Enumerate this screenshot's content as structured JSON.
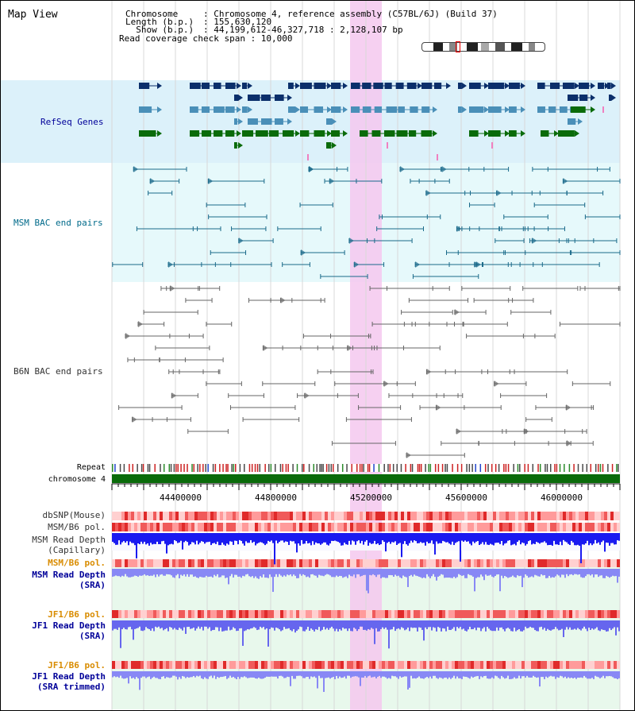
{
  "view_title": "Map View",
  "header": {
    "chromosome_key": "Chromosome    ",
    "chromosome_val": ": Chromosome 4, reference assembly (C57BL/6J) (Build 37)",
    "length_key": "Length (b.p.) ",
    "length_val": ": 155,630,120",
    "show_key": "  Show (b.p.) ",
    "show_val": ": 44,199,612-46,327,718 : 2,128,107 bp",
    "coverage": "Read coverage check span : 10,000"
  },
  "tracks": {
    "refseq": "RefSeq Genes",
    "msm_bac": "MSM BAC end pairs",
    "b6n_bac": "B6N BAC end pairs",
    "repeat": "Repeat",
    "chromosome": "chromosome 4",
    "dbsnp": "dbSNP(Mouse)",
    "msm_b6_pol": "MSM/B6 pol.",
    "msm_rd_cap_1": "MSM Read Depth",
    "msm_rd_cap_2": "(Capillary)",
    "msm_b6_pol2": "MSM/B6 pol.",
    "msm_rd_sra_1": "MSM Read Depth",
    "msm_rd_sra_2": "(SRA)",
    "jf1_b6_pol": "JF1/B6 pol.",
    "jf1_rd_sra_1": "JF1 Read Depth",
    "jf1_rd_sra_2": "(SRA)",
    "jf1_b6_pol2": "JF1/B6 pol.",
    "jf1_rd_trim_1": "JF1 Read Depth",
    "jf1_rd_trim_2": "(SRA trimmed)"
  },
  "axis_ticks": [
    "44400000",
    "44800000",
    "45200000",
    "45600000",
    "46000000"
  ],
  "colors": {
    "refseq_dark": "#0b2f6b",
    "refseq_mid": "#4a8fb8",
    "refseq_green": "#0a6b0a",
    "msm_bac": "#1a6a8a",
    "b6n_bac": "#666666",
    "highlight": "#f5c8ee",
    "refseq_bg": "#dcf1fa",
    "msm_bg": "#e6f9fb",
    "read_bg": "#e8f8ec",
    "label_blue": "#000099",
    "label_teal": "#006a8a",
    "label_orange": "#d98c00",
    "label_dark": "#333333"
  }
}
